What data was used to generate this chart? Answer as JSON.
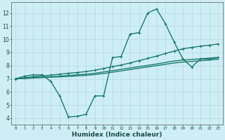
{
  "xlabel": "Humidex (Indice chaleur)",
  "background_color": "#ceeef5",
  "grid_color": "#b8dde5",
  "line_color": "#1a7a6e",
  "xlim": [
    -0.5,
    23.5
  ],
  "ylim": [
    3.5,
    12.8
  ],
  "xticks": [
    0,
    1,
    2,
    3,
    4,
    5,
    6,
    7,
    8,
    9,
    10,
    11,
    12,
    13,
    14,
    15,
    16,
    17,
    18,
    19,
    20,
    21,
    22,
    23
  ],
  "yticks": [
    4,
    5,
    6,
    7,
    8,
    9,
    10,
    11,
    12
  ],
  "lines": [
    {
      "x": [
        0,
        1,
        2,
        3,
        4,
        5,
        6,
        7,
        8,
        9,
        10,
        11,
        12,
        13,
        14,
        15,
        16,
        17,
        18,
        19,
        20,
        21,
        22,
        23
      ],
      "y": [
        7.0,
        7.2,
        7.3,
        7.3,
        6.8,
        5.7,
        4.1,
        4.15,
        4.3,
        5.7,
        5.7,
        8.6,
        8.7,
        10.4,
        10.5,
        12.0,
        12.3,
        11.2,
        9.8,
        8.5,
        7.9,
        8.5,
        8.5,
        8.6
      ],
      "marker": "+",
      "markersize": 3,
      "linewidth": 1.0
    },
    {
      "x": [
        0,
        1,
        2,
        3,
        4,
        5,
        6,
        7,
        8,
        9,
        10,
        11,
        12,
        13,
        14,
        15,
        16,
        17,
        18,
        19,
        20,
        21,
        22,
        23
      ],
      "y": [
        7.0,
        7.08,
        7.15,
        7.22,
        7.28,
        7.35,
        7.42,
        7.48,
        7.55,
        7.65,
        7.78,
        7.92,
        8.05,
        8.2,
        8.38,
        8.55,
        8.72,
        8.92,
        9.1,
        9.28,
        9.38,
        9.48,
        9.55,
        9.65
      ],
      "marker": "+",
      "markersize": 3,
      "linewidth": 1.0
    },
    {
      "x": [
        0,
        1,
        2,
        3,
        4,
        5,
        6,
        7,
        8,
        9,
        10,
        11,
        12,
        13,
        14,
        15,
        16,
        17,
        18,
        19,
        20,
        21,
        22,
        23
      ],
      "y": [
        7.0,
        7.04,
        7.08,
        7.12,
        7.16,
        7.2,
        7.25,
        7.3,
        7.35,
        7.42,
        7.52,
        7.62,
        7.72,
        7.82,
        7.92,
        8.02,
        8.12,
        8.24,
        8.35,
        8.42,
        8.47,
        8.52,
        8.57,
        8.63
      ],
      "marker": null,
      "markersize": 0,
      "linewidth": 1.0
    },
    {
      "x": [
        0,
        1,
        2,
        3,
        4,
        5,
        6,
        7,
        8,
        9,
        10,
        11,
        12,
        13,
        14,
        15,
        16,
        17,
        18,
        19,
        20,
        21,
        22,
        23
      ],
      "y": [
        7.0,
        7.03,
        7.06,
        7.09,
        7.12,
        7.15,
        7.18,
        7.22,
        7.26,
        7.32,
        7.4,
        7.5,
        7.6,
        7.7,
        7.8,
        7.9,
        8.0,
        8.1,
        8.2,
        8.27,
        8.32,
        8.37,
        8.42,
        8.48
      ],
      "marker": null,
      "markersize": 0,
      "linewidth": 1.0
    }
  ]
}
